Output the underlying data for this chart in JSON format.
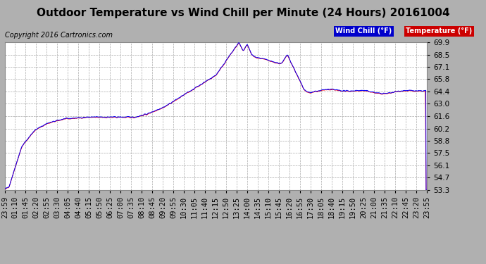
{
  "title": "Outdoor Temperature vs Wind Chill per Minute (24 Hours) 20161004",
  "copyright": "Copyright 2016 Cartronics.com",
  "ylabel_right_ticks": [
    53.3,
    54.7,
    56.1,
    57.5,
    58.8,
    60.2,
    61.6,
    63.0,
    64.4,
    65.8,
    67.1,
    68.5,
    69.9
  ],
  "ymin": 53.3,
  "ymax": 69.9,
  "legend_wind_chill": "Wind Chill (°F)",
  "legend_temperature": "Temperature (°F)",
  "wind_chill_color": "#ff0000",
  "temperature_color": "#0000ff",
  "legend_wind_bg": "#0000cc",
  "legend_temp_bg": "#cc0000",
  "figure_bg_color": "#b0b0b0",
  "plot_bg_color": "#ffffff",
  "grid_color": "#aaaaaa",
  "title_fontsize": 11,
  "copyright_fontsize": 7,
  "tick_fontsize": 7.5,
  "n_minutes": 1440,
  "x_tick_labels": [
    "23:59",
    "01:10",
    "01:45",
    "02:20",
    "02:55",
    "03:30",
    "04:05",
    "04:40",
    "05:15",
    "05:50",
    "06:25",
    "07:00",
    "07:35",
    "08:10",
    "08:45",
    "09:20",
    "09:55",
    "10:30",
    "11:05",
    "11:40",
    "12:15",
    "12:50",
    "13:25",
    "14:00",
    "14:35",
    "15:10",
    "15:45",
    "16:20",
    "16:55",
    "17:30",
    "18:05",
    "18:40",
    "19:15",
    "19:50",
    "20:25",
    "21:00",
    "21:35",
    "22:10",
    "22:45",
    "23:20",
    "23:55"
  ]
}
